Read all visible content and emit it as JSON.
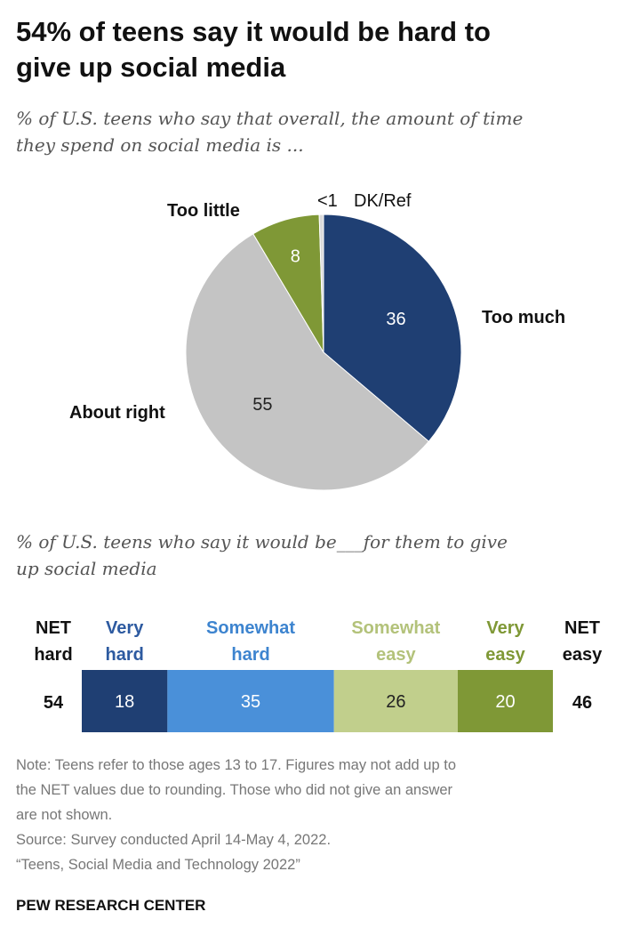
{
  "header": {
    "title_line1": "54% of teens say it would be hard to",
    "title_line2": "give up social media"
  },
  "chart_data": [
    {
      "type": "pie",
      "subtitle_line1": "% of U.S. teens who say that overall, the amount of time",
      "subtitle_line2": "they spend on social media is ...",
      "slices": [
        {
          "label": "Too much",
          "value": 36,
          "value_label": "36",
          "color": "#1f3f73",
          "text_color": "#ffffff"
        },
        {
          "label": "About right",
          "value": 55,
          "value_label": "55",
          "color": "#c4c4c4",
          "text_color": "#222222"
        },
        {
          "label": "Too little",
          "value": 8,
          "value_label": "8",
          "color": "#7f9836",
          "text_color": "#ffffff"
        },
        {
          "label": "DK/Ref",
          "value": 0.5,
          "value_label": "<1",
          "color": "#dadada",
          "text_color": "#111111"
        }
      ]
    },
    {
      "type": "bar",
      "orientation": "horizontal-stacked",
      "subtitle_line1": "% of U.S. teens who say it would be___for them to give",
      "subtitle_line2": "up social media",
      "net_left": {
        "label_line1": "NET",
        "label_line2": "hard",
        "value": 54
      },
      "net_right": {
        "label_line1": "NET",
        "label_line2": "easy",
        "value": 46
      },
      "segments": [
        {
          "label_line1": "Very",
          "label_line2": "hard",
          "value": 18,
          "color": "#1f3f73",
          "label_color": "#2d5aa0",
          "text_color": "#ffffff"
        },
        {
          "label_line1": "Somewhat",
          "label_line2": "hard",
          "value": 35,
          "color": "#4a90d9",
          "label_color": "#3d84cf",
          "text_color": "#ffffff"
        },
        {
          "label_line1": "Somewhat",
          "label_line2": "easy",
          "value": 26,
          "color": "#c1cf8c",
          "label_color": "#b3c27a",
          "text_color": "#222222"
        },
        {
          "label_line1": "Very",
          "label_line2": "easy",
          "value": 20,
          "color": "#7f9836",
          "label_color": "#7f9836",
          "text_color": "#ffffff"
        }
      ]
    }
  ],
  "footer": {
    "note_line1": "Note: Teens refer to those ages 13 to 17. Figures may not add up to",
    "note_line2": "the NET values due to rounding. Those who did not give an answer",
    "note_line3": "are not shown.",
    "source": "Source: Survey conducted April 14-May 4, 2022.",
    "report": "“Teens, Social Media and Technology 2022”",
    "brand": "PEW RESEARCH CENTER"
  }
}
